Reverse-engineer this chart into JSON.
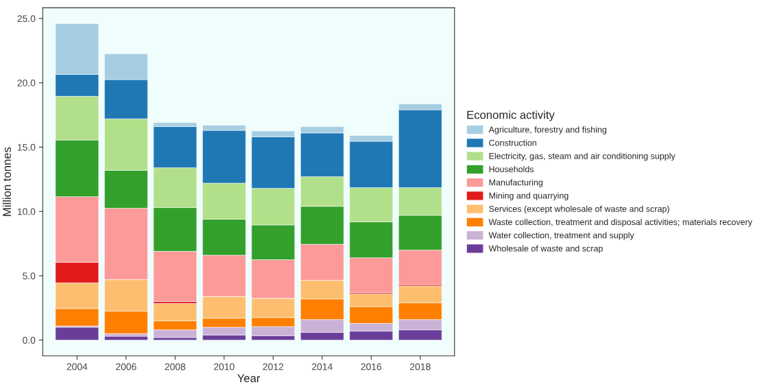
{
  "chart_data": {
    "type": "bar",
    "stacked": true,
    "xlabel": "Year",
    "ylabel": "Million tonnes",
    "legend_title": "Economic activity",
    "legend": "right",
    "grid": false,
    "categories": [
      "2004",
      "2006",
      "2008",
      "2010",
      "2012",
      "2014",
      "2016",
      "2018"
    ],
    "ylim": [
      -1.23,
      25.83
    ],
    "yticks": [
      {
        "value": 0,
        "label": "0.0"
      },
      {
        "value": 5,
        "label": "5.0"
      },
      {
        "value": 10,
        "label": "10.0"
      },
      {
        "value": 15,
        "label": "15.0"
      },
      {
        "value": 20,
        "label": "20.0"
      },
      {
        "value": 25,
        "label": "25.0"
      }
    ],
    "series": [
      {
        "name": "Wholesale of waste and scrap",
        "color": "#6a3d9a",
        "values": [
          1.0,
          0.3,
          0.2,
          0.4,
          0.35,
          0.6,
          0.7,
          0.8
        ]
      },
      {
        "name": "Water collection, treatment and supply",
        "color": "#cab2d6",
        "values": [
          0.1,
          0.2,
          0.6,
          0.6,
          0.7,
          1.0,
          0.6,
          0.8
        ]
      },
      {
        "name": "Waste collection, treatment and disposal activities; materials recovery",
        "color": "#ff7f00",
        "values": [
          1.35,
          1.75,
          0.7,
          0.7,
          0.7,
          1.6,
          1.3,
          1.3
        ]
      },
      {
        "name": "Services (except wholesale of waste and scrap)",
        "color": "#fdbf6f",
        "values": [
          2.0,
          2.45,
          1.35,
          1.7,
          1.5,
          1.45,
          1.0,
          1.3
        ]
      },
      {
        "name": "Mining and quarrying",
        "color": "#e31a1c",
        "values": [
          1.6,
          0,
          0.15,
          0,
          0,
          0,
          0.1,
          0.1
        ]
      },
      {
        "name": "Manufacturing",
        "color": "#fb9a99",
        "values": [
          5.1,
          5.55,
          3.9,
          3.2,
          3.0,
          2.8,
          2.7,
          2.7
        ]
      },
      {
        "name": "Households",
        "color": "#33a02c",
        "values": [
          4.4,
          2.95,
          3.4,
          2.8,
          2.7,
          2.95,
          2.8,
          2.7
        ]
      },
      {
        "name": "Electricity, gas, steam and air conditioning supply",
        "color": "#b2df8a",
        "values": [
          3.4,
          4.0,
          3.1,
          2.8,
          2.85,
          2.3,
          2.65,
          2.15
        ]
      },
      {
        "name": "Construction",
        "color": "#1f78b4",
        "values": [
          1.7,
          3.05,
          3.2,
          4.1,
          4.0,
          3.4,
          3.6,
          6.05
        ]
      },
      {
        "name": "Agriculture, forestry and fishing",
        "color": "#a6cee3",
        "values": [
          3.95,
          2.0,
          0.3,
          0.4,
          0.45,
          0.5,
          0.45,
          0.45
        ]
      }
    ]
  }
}
